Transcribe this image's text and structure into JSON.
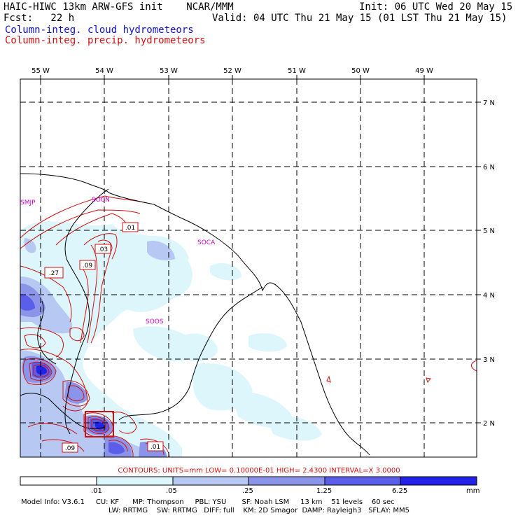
{
  "header": {
    "title_left": "HAIC-HIWC 13km ARW-GFS init    NCAR/MMM",
    "fcst": "Fcst:   22 h",
    "init": "Init: 06 UTC Wed 20 May 15",
    "valid": "Valid: 04 UTC Thu 21 May 15 (01 LST Thu 21 May 15)",
    "field_cloud": "Column-integ. cloud hydrometeors",
    "field_precip": "Column-integ. precip. hydrometeors"
  },
  "map": {
    "lon_labels": [
      "55 W",
      "54 W",
      "53 W",
      "52 W",
      "51 W",
      "50 W",
      "49 W"
    ],
    "lat_labels": [
      "7 N",
      "6 N",
      "5 N",
      "4 N",
      "3 N",
      "2 N"
    ],
    "stations": [
      "SMJP",
      "SOCN",
      "SOCA",
      "SOOS"
    ],
    "contour_labels": [
      ".01",
      ".03",
      ".09",
      ".27",
      ".09",
      ".01"
    ]
  },
  "contours_info": "CONTOURS:  UNITS=mm   LOW= 0.10000E-01   HIGH=  2.4300       INTERVAL=X  3.0000",
  "colorbar": {
    "ticks": [
      ".01",
      ".05",
      ".25",
      "1.25",
      "6.25"
    ],
    "units": "mm",
    "colors": [
      "#ffffff",
      "#ddf6fb",
      "#b7c8f2",
      "#8c94ea",
      "#5a5ee8",
      "#2222e6"
    ]
  },
  "model_info": {
    "line1": "Model Info: V3.6.1     CU: KF      MP: Thompson     PBL: YSU       SF: Noah LSM     13 km    51 levels    60 sec",
    "line2": "LW: RRTMG    SW: RRTMG   DIFF: full    KM: 2D Smagor  DAMP: Rayleigh3   SFLAY: MM5"
  }
}
